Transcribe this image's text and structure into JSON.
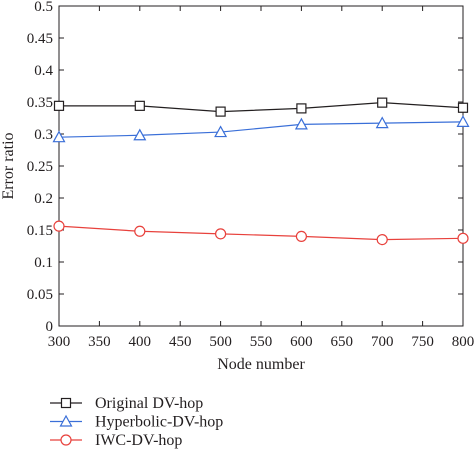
{
  "chart_data": {
    "type": "line",
    "xlabel": "Node number",
    "ylabel": "Error ratio",
    "xlim": [
      300,
      800
    ],
    "ylim": [
      0,
      0.5
    ],
    "x_ticks": [
      "300",
      "350",
      "400",
      "450",
      "500",
      "550",
      "600",
      "650",
      "700",
      "750",
      "800"
    ],
    "y_ticks": [
      "0",
      "0.05",
      "0.1",
      "0.15",
      "0.2",
      "0.25",
      "0.3",
      "0.35",
      "0.4",
      "0.45",
      "0.5"
    ],
    "x": [
      300,
      400,
      500,
      600,
      700,
      800
    ],
    "grid": false,
    "legend_position": "below",
    "series": [
      {
        "name": "Original DV-hop",
        "color": "#231f20",
        "marker": "square",
        "values": [
          0.344,
          0.344,
          0.335,
          0.34,
          0.349,
          0.341
        ]
      },
      {
        "name": "Hyperbolic-DV-hop",
        "color": "#3a6fd8",
        "marker": "triangle",
        "values": [
          0.295,
          0.298,
          0.303,
          0.315,
          0.317,
          0.319
        ]
      },
      {
        "name": "IWC-DV-hop",
        "color": "#e8413c",
        "marker": "circle",
        "values": [
          0.156,
          0.148,
          0.144,
          0.14,
          0.135,
          0.137
        ]
      }
    ]
  }
}
